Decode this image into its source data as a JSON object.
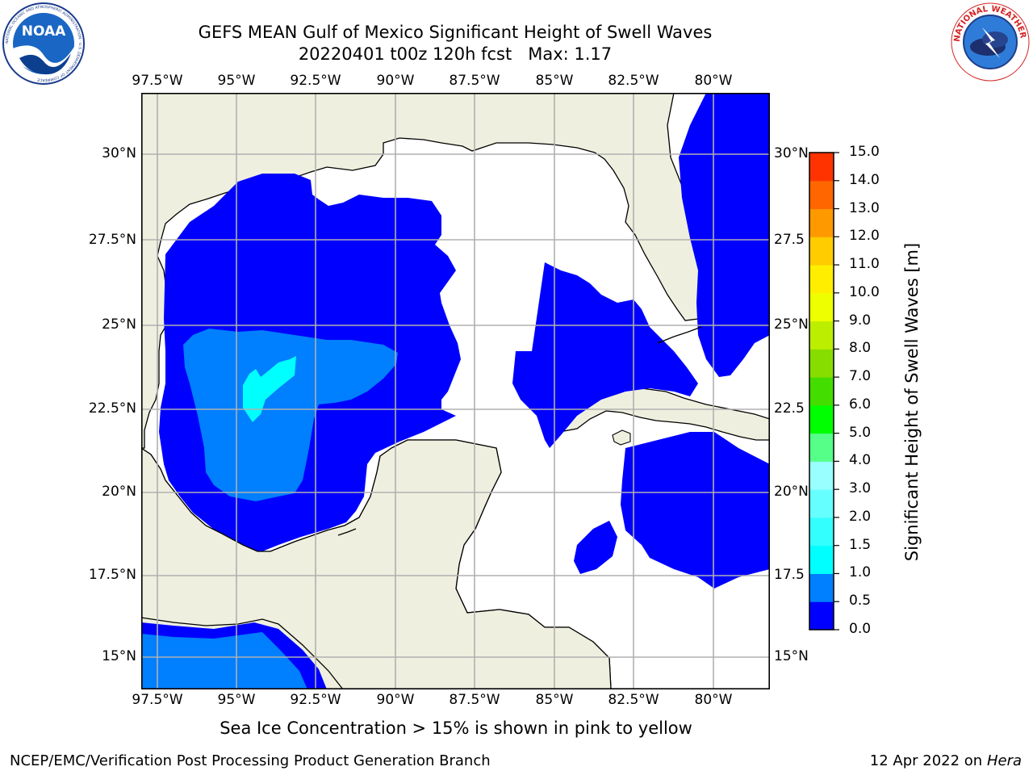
{
  "title": {
    "line1": "GEFS MEAN Gulf of Mexico Significant Height of Swell Waves",
    "line2": "20220401 t00z 120h fcst   Max: 1.17"
  },
  "logos": {
    "noaa_icon": "noaa-logo-icon",
    "nws_icon": "nws-logo-icon",
    "noaa_text": "NOAA",
    "noaa_ring_text": "NATIONAL OCEANIC AND ATMOSPHERIC ADMINISTRATION · U.S. DEPARTMENT OF COMMERCE",
    "nws_ring_text": "NATIONAL WEATHER SERVICE"
  },
  "map": {
    "lon_labels": [
      "97.5°W",
      "95°W",
      "92.5°W",
      "90°W",
      "87.5°W",
      "85°W",
      "82.5°W",
      "80°W"
    ],
    "lat_labels_left": [
      "30°N",
      "27.5°N",
      "25°N",
      "22.5°N",
      "20°N",
      "17.5°N",
      "15°N"
    ],
    "lat_labels_right": [
      "30°N",
      "27.5",
      "25°N",
      "22.5",
      "20°N",
      "17.5",
      "15°N"
    ],
    "lon_extent": [
      -98,
      -79
    ],
    "lat_extent": [
      14,
      32
    ],
    "land_color": "#efefdf",
    "ocean_missing_color": "#ffffff",
    "grid_color": "#b0b0b0"
  },
  "colorbar": {
    "label": "Significant Height of Swell Waves [m]",
    "ticks": [
      "15.0",
      "14.0",
      "13.0",
      "12.0",
      "11.0",
      "10.0",
      "9.0",
      "8.0",
      "7.0",
      "6.0",
      "5.0",
      "4.0",
      "3.0",
      "2.0",
      "1.5",
      "1.0",
      "0.5",
      "0.0"
    ],
    "colors_bottom_to_top": [
      "#0000ff",
      "#007fff",
      "#00ffff",
      "#33ffff",
      "#66ffff",
      "#99ffff",
      "#55ff88",
      "#00ff00",
      "#44dd00",
      "#88dd00",
      "#bbee00",
      "#eeff00",
      "#ffee00",
      "#ffcc00",
      "#ff9900",
      "#ff6600",
      "#ff3300"
    ]
  },
  "footnote": "Sea Ice Concentration > 15% is shown in pink to yellow",
  "credit": "NCEP/EMC/Verification Post Processing Product Generation Branch",
  "date": {
    "text": "12 Apr 2022 on",
    "host": "Hera"
  }
}
